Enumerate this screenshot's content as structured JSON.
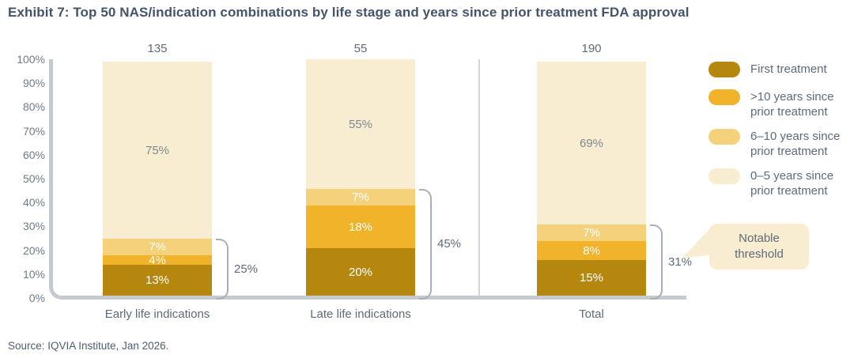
{
  "title": "Exhibit 7: Top 50 NAS/indication combinations by life stage and years since prior treatment FDA approval",
  "source": "Source: IQVIA Institute, Jan 2026.",
  "callout": {
    "text": "Notable threshold"
  },
  "chart_data": {
    "type": "stacked-bar",
    "title": "Top 50 NAS/indication combinations by life stage and years since prior treatment FDA approval",
    "categories": [
      "Early life indications",
      "Late life indications",
      "Total"
    ],
    "bar_totals": [
      "135",
      "55",
      "190"
    ],
    "series": [
      {
        "key": "first-treatment",
        "name": "First treatment",
        "color": "#B5870F",
        "label_color": "#FFFFFF",
        "values": [
          13,
          20,
          15
        ]
      },
      {
        "key": "gt-10-years",
        "name": ">10 years since prior treatment",
        "color": "#F0B32A",
        "label_color": "#FFFFFF",
        "values": [
          4,
          18,
          8
        ]
      },
      {
        "key": "6-10-years",
        "name": "6–10 years since prior treatment",
        "color": "#F6D17C",
        "label_color": "#FFFFFF",
        "values": [
          7,
          7,
          7
        ]
      },
      {
        "key": "0-5-years",
        "name": "0–5 years since prior treatment",
        "color": "#F8EDD0",
        "label_color": "#7E8894",
        "values": [
          75,
          55,
          69
        ]
      }
    ],
    "value_suffix": "%",
    "y_ticks": [
      "100%",
      "90%",
      "80%",
      "70%",
      "60%",
      "50%",
      "40%",
      "30%",
      "20%",
      "10%",
      "0%"
    ],
    "ylim": [
      0,
      100
    ],
    "grid": false,
    "legend_position": "right",
    "brackets": [
      {
        "span": 24,
        "label": "25%"
      },
      {
        "span": 45,
        "label": "45%"
      },
      {
        "span": 30,
        "label": "31%"
      }
    ]
  }
}
